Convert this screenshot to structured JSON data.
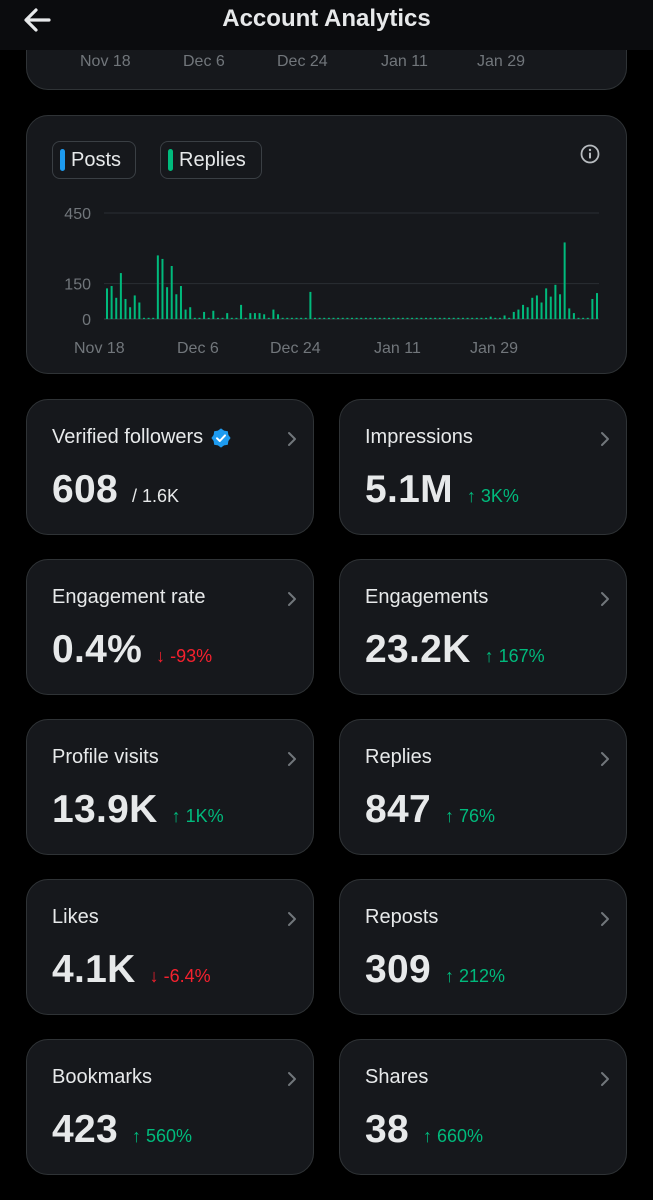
{
  "header": {
    "title": "Account Analytics",
    "back_icon": "arrow-left-icon"
  },
  "top_axis": {
    "labels": [
      "Nov 18",
      "Dec 6",
      "Dec 24",
      "Jan 11",
      "Jan 29"
    ]
  },
  "legend": {
    "posts": {
      "label": "Posts",
      "color": "#1d9bf0"
    },
    "replies": {
      "label": "Replies",
      "color": "#00ba7c"
    }
  },
  "chart_data": {
    "type": "bar",
    "yticks": [
      450,
      150,
      0
    ],
    "ylim": [
      0,
      450
    ],
    "xtick_labels": [
      "Nov 18",
      "Dec 6",
      "Dec 24",
      "Jan 11",
      "Jan 29"
    ],
    "grid": true,
    "series": [
      {
        "name": "Replies",
        "color": "#00ba7c",
        "values": [
          130,
          140,
          90,
          195,
          85,
          50,
          100,
          70,
          5,
          5,
          5,
          270,
          255,
          135,
          225,
          105,
          140,
          40,
          50,
          5,
          5,
          30,
          5,
          35,
          5,
          5,
          25,
          5,
          5,
          60,
          5,
          25,
          25,
          25,
          20,
          5,
          40,
          20,
          5,
          5,
          5,
          5,
          5,
          5,
          115,
          5,
          5,
          5,
          5,
          5,
          5,
          5,
          5,
          5,
          5,
          5,
          5,
          5,
          5,
          5,
          5,
          5,
          5,
          5,
          5,
          5,
          5,
          5,
          5,
          5,
          5,
          5,
          5,
          5,
          5,
          5,
          5,
          5,
          5,
          5,
          5,
          5,
          5,
          10,
          5,
          5,
          15,
          5,
          30,
          40,
          60,
          50,
          90,
          100,
          70,
          130,
          95,
          145,
          105,
          325,
          45,
          25,
          5,
          5,
          5,
          85,
          110
        ]
      },
      {
        "name": "Posts",
        "color": "#1d9bf0",
        "values": []
      }
    ]
  },
  "metrics": [
    {
      "label": "Verified followers",
      "value": "608",
      "sub": "/ 1.6K",
      "verified": true
    },
    {
      "label": "Impressions",
      "value": "5.1M",
      "change": "↑ 3K%",
      "direction": "up"
    },
    {
      "label": "Engagement rate",
      "value": "0.4%",
      "change": "↓ -93%",
      "direction": "down"
    },
    {
      "label": "Engagements",
      "value": "23.2K",
      "change": "↑ 167%",
      "direction": "up"
    },
    {
      "label": "Profile visits",
      "value": "13.9K",
      "change": "↑ 1K%",
      "direction": "up"
    },
    {
      "label": "Replies",
      "value": "847",
      "change": "↑ 76%",
      "direction": "up"
    },
    {
      "label": "Likes",
      "value": "4.1K",
      "change": "↓ -6.4%",
      "direction": "down"
    },
    {
      "label": "Reposts",
      "value": "309",
      "change": "↑ 212%",
      "direction": "up"
    },
    {
      "label": "Bookmarks",
      "value": "423",
      "change": "↑ 560%",
      "direction": "up"
    },
    {
      "label": "Shares",
      "value": "38",
      "change": "↑ 660%",
      "direction": "up"
    }
  ]
}
